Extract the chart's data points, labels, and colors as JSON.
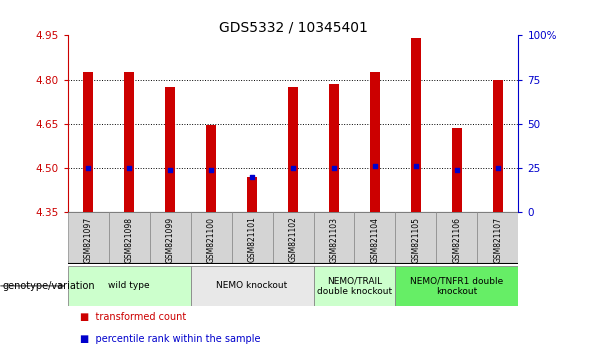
{
  "title": "GDS5332 / 10345401",
  "samples": [
    "GSM821097",
    "GSM821098",
    "GSM821099",
    "GSM821100",
    "GSM821101",
    "GSM821102",
    "GSM821103",
    "GSM821104",
    "GSM821105",
    "GSM821106",
    "GSM821107"
  ],
  "transformed_counts": [
    4.825,
    4.825,
    4.775,
    4.645,
    4.47,
    4.775,
    4.785,
    4.825,
    4.94,
    4.635,
    4.8
  ],
  "percentile_ranks": [
    25,
    25,
    24,
    24,
    20,
    25,
    25,
    26,
    26,
    24,
    25
  ],
  "bar_bottom": 4.35,
  "ylim": [
    4.35,
    4.95
  ],
  "right_ylim": [
    0,
    100
  ],
  "right_yticks": [
    0,
    25,
    50,
    75,
    100
  ],
  "right_yticklabels": [
    "0",
    "25",
    "50",
    "75",
    "100%"
  ],
  "left_yticks": [
    4.35,
    4.5,
    4.65,
    4.8,
    4.95
  ],
  "hgrid_vals": [
    4.5,
    4.65,
    4.8
  ],
  "bar_color": "#CC0000",
  "dot_color": "#0000CC",
  "bar_width": 0.25,
  "groups": [
    {
      "label": "wild type",
      "start": 0,
      "end": 2,
      "color": "#ccffcc"
    },
    {
      "label": "NEMO knockout",
      "start": 3,
      "end": 5,
      "color": "#e8e8e8"
    },
    {
      "label": "NEMO/TRAIL\ndouble knockout",
      "start": 6,
      "end": 7,
      "color": "#ccffcc"
    },
    {
      "label": "NEMO/TNFR1 double\nknockout",
      "start": 8,
      "end": 10,
      "color": "#66ee66"
    }
  ],
  "xlabel_group": "genotype/variation",
  "legend_items": [
    {
      "label": "transformed count",
      "color": "#CC0000"
    },
    {
      "label": "percentile rank within the sample",
      "color": "#0000CC"
    }
  ],
  "cell_color": "#d4d4d4",
  "title_fontsize": 10,
  "tick_fontsize": 7.5,
  "sample_fontsize": 5.5,
  "group_fontsize": 6.5,
  "legend_fontsize": 7
}
